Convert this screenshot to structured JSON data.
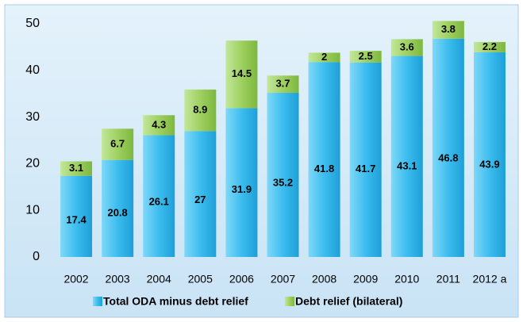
{
  "chart_data": {
    "type": "stacked_bar",
    "categories": [
      "2002",
      "2003",
      "2004",
      "2005",
      "2006",
      "2007",
      "2008",
      "2009",
      "2010",
      "2011",
      "2012 a"
    ],
    "series": [
      {
        "name": "Total ODA minus debt relief",
        "color": "#3cbdee",
        "values": [
          17.4,
          20.8,
          26.1,
          27,
          31.9,
          35.2,
          41.8,
          41.7,
          43.1,
          46.8,
          43.9
        ]
      },
      {
        "name": "Debt relief (bilateral)",
        "color": "#9fd060",
        "values": [
          3.1,
          6.7,
          4.3,
          8.9,
          14.5,
          3.7,
          2,
          2.5,
          3.6,
          3.8,
          2.2
        ]
      }
    ],
    "ylim": [
      0,
      50
    ],
    "yticks": [
      0,
      10,
      20,
      30,
      40,
      50
    ],
    "grid": false,
    "legend": "bottom"
  }
}
